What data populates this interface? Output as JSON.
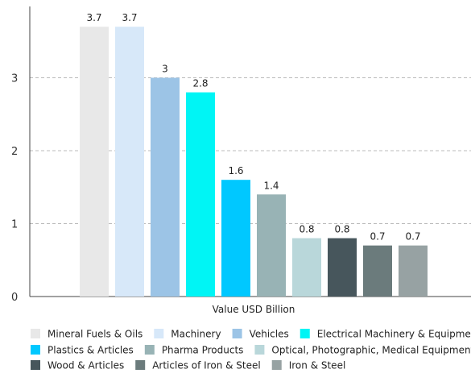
{
  "chart_data": {
    "type": "bar",
    "xlabel": "Value USD Billion",
    "ylabel": "",
    "ylim": [
      0,
      4
    ],
    "yticks": [
      0,
      1,
      2,
      3
    ],
    "grid": "horizontal dashed",
    "legend_position": "bottom",
    "series": [
      {
        "name": "Mineral Fuels & Oils",
        "value": 3.7,
        "label": "3.7",
        "color": "#e8e8e8"
      },
      {
        "name": "Machinery",
        "value": 3.7,
        "label": "3.7",
        "color": "#d7e8f9"
      },
      {
        "name": "Vehicles",
        "value": 3.0,
        "label": "3",
        "color": "#9cc4e6"
      },
      {
        "name": "Electrical Machinery & Equipment",
        "value": 2.8,
        "label": "2.8",
        "color": "#00f5f5"
      },
      {
        "name": "Plastics & Articles",
        "value": 1.6,
        "label": "1.6",
        "color": "#00c8ff"
      },
      {
        "name": "Pharma Products",
        "value": 1.4,
        "label": "1.4",
        "color": "#98b3b5"
      },
      {
        "name": "Optical, Photographic, Medical Equipment",
        "value": 0.8,
        "label": "0.8",
        "color": "#b9d7da"
      },
      {
        "name": "Wood & Articles",
        "value": 0.8,
        "label": "0.8",
        "color": "#47565c"
      },
      {
        "name": "Articles of Iron & Steel",
        "value": 0.7,
        "label": "0.7",
        "color": "#6b7b7c"
      },
      {
        "name": "Iron & Steel",
        "value": 0.7,
        "label": "0.7",
        "color": "#97a2a3"
      }
    ]
  }
}
